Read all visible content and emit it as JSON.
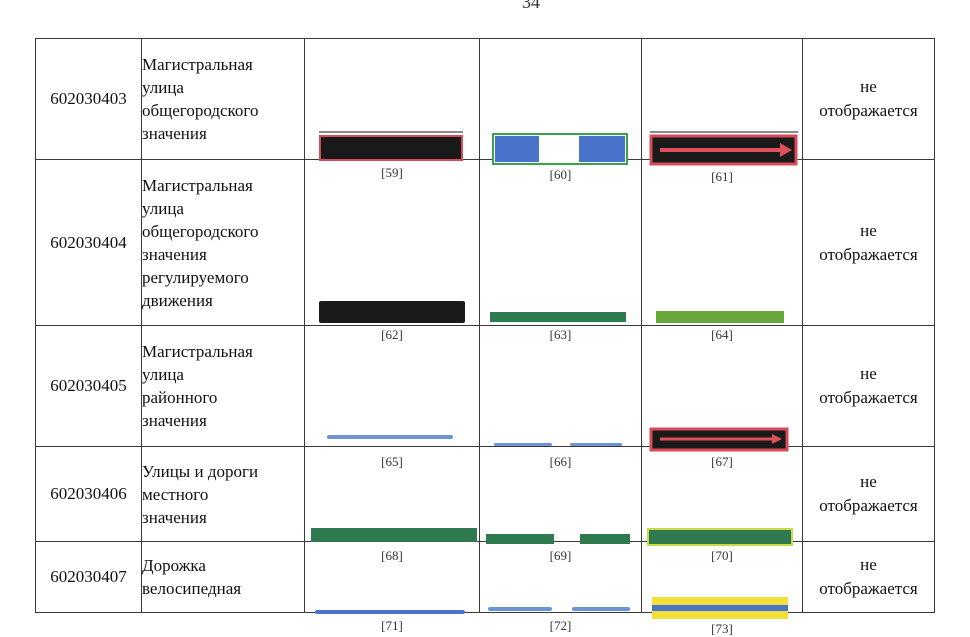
{
  "page_number": "34",
  "rows": [
    {
      "code": "602030403",
      "name": [
        "Магистральная",
        "улица",
        "общегородского",
        "значения"
      ],
      "refs": [
        "[59]",
        "[60]",
        "[61]"
      ],
      "note": [
        "не",
        "отображается"
      ]
    },
    {
      "code": "602030404",
      "name": [
        "Магистральная",
        "улица",
        "общегородского",
        "значения",
        "регулируемого",
        "движения"
      ],
      "refs": [
        "[62]",
        "[63]",
        "[64]"
      ],
      "note": [
        "не",
        "отображается"
      ]
    },
    {
      "code": "602030405",
      "name": [
        "Магистральная",
        "улица",
        "районного",
        "значения"
      ],
      "refs": [
        "[65]",
        "[66]",
        "[67]"
      ],
      "note": [
        "не",
        "отображается"
      ]
    },
    {
      "code": "602030406",
      "name": [
        "Улицы и дороги",
        "местного",
        "значения"
      ],
      "refs": [
        "[68]",
        "[69]",
        "[70]"
      ],
      "note": [
        "не",
        "отображается"
      ]
    },
    {
      "code": "602030407",
      "name": [
        "Дорожка",
        "велосипедная"
      ],
      "refs": [
        "[71]",
        "[72]",
        "[73]"
      ],
      "note": [
        "не",
        "отображается"
      ]
    }
  ],
  "colors": {
    "black_fill": "#1a1a1a",
    "red_outline": "#d94a5a",
    "blue": "#4a74cc",
    "green_outline": "#3aa24a",
    "dark_green": "#2e7a4e",
    "light_green": "#6aa63a",
    "light_blue": "#6b93d6",
    "yellow": "#f2df3a",
    "arrow_red": "#e0505a"
  }
}
